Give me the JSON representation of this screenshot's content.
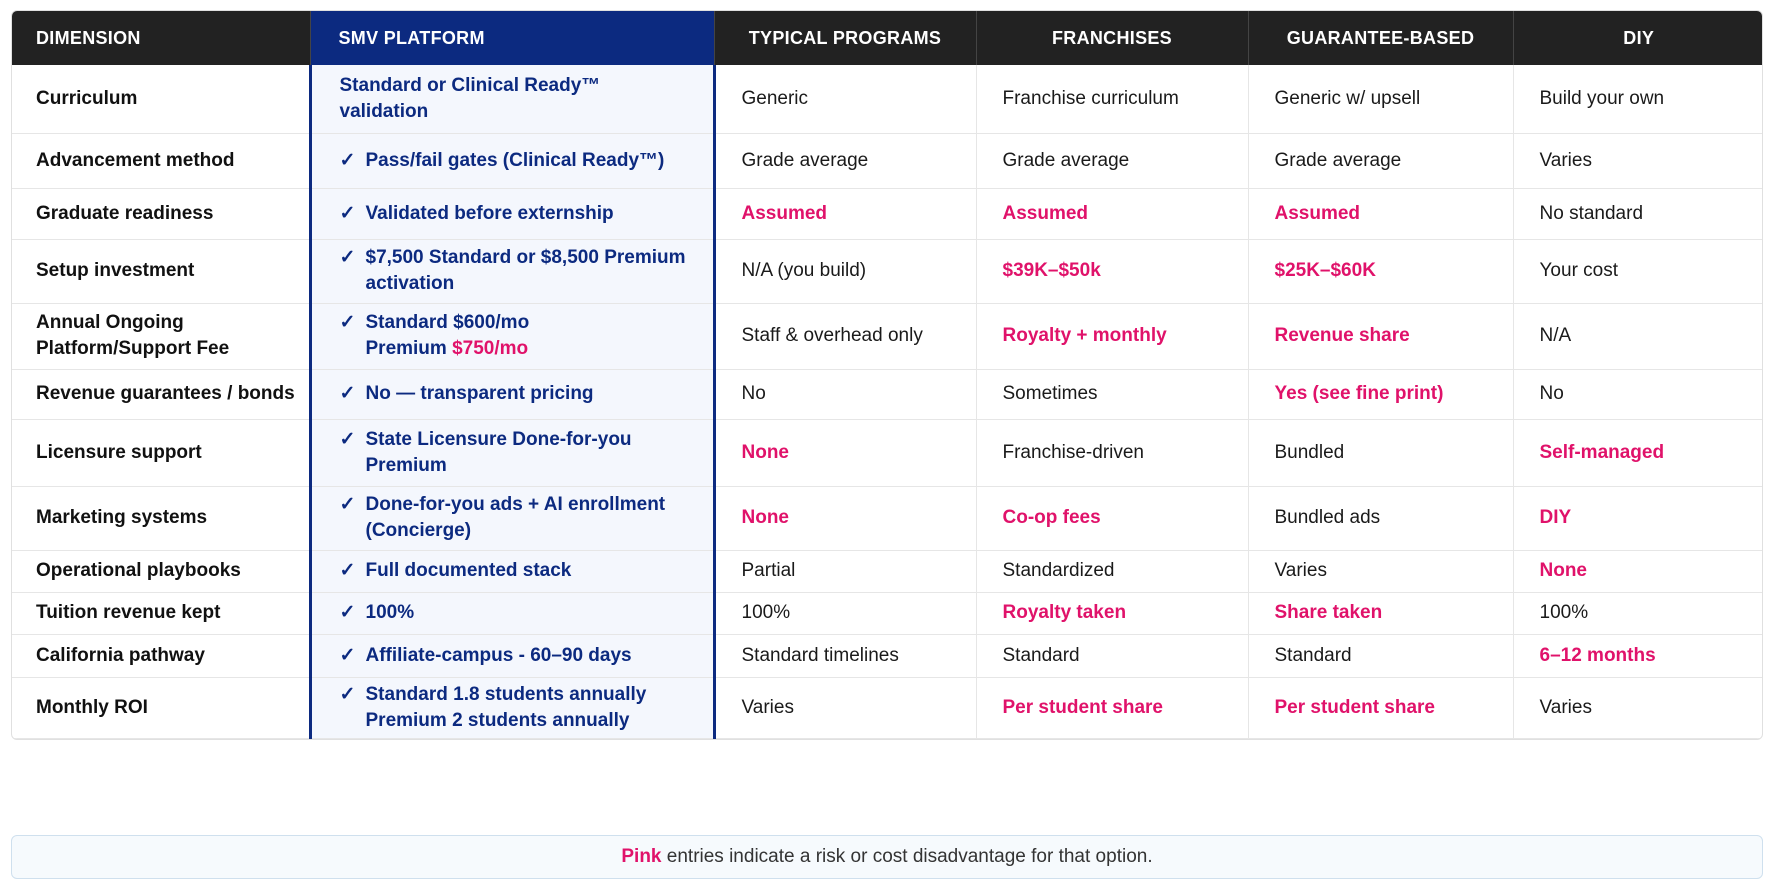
{
  "headers": [
    "DIMENSION",
    "SMV PLATFORM",
    "TYPICAL PROGRAMS",
    "FRANCHISES",
    "GUARANTEE-BASED",
    "DIY"
  ],
  "accent_colors": {
    "smv": "#0c2a80",
    "pink": "#e0126a",
    "header_bg": "#222222"
  },
  "rows": [
    {
      "dimension": "Curriculum",
      "smv": "Standard or Clinical Ready™ validation",
      "smv_check": false,
      "cells": [
        {
          "text": "Generic",
          "pink": false
        },
        {
          "text": "Franchise curriculum",
          "pink": false
        },
        {
          "text": "Generic w/ upsell",
          "pink": false
        },
        {
          "text": "Build your own",
          "pink": false
        }
      ]
    },
    {
      "dimension": "Advancement method",
      "smv": "Pass/fail gates (Clinical Ready™)",
      "smv_check": true,
      "cells": [
        {
          "text": "Grade average",
          "pink": false
        },
        {
          "text": "Grade average",
          "pink": false
        },
        {
          "text": "Grade average",
          "pink": false
        },
        {
          "text": "Varies",
          "pink": false
        }
      ]
    },
    {
      "dimension": "Graduate readiness",
      "smv": "Validated before externship",
      "smv_check": true,
      "cells": [
        {
          "text": "Assumed",
          "pink": true
        },
        {
          "text": "Assumed",
          "pink": true
        },
        {
          "text": "Assumed",
          "pink": true
        },
        {
          "text": "No standard",
          "pink": false
        }
      ]
    },
    {
      "dimension": "Setup investment",
      "smv": "$7,500 Standard or $8,500 Premium activation",
      "smv_check": true,
      "cells": [
        {
          "text": "N/A (you build)",
          "pink": false
        },
        {
          "text": "$39K–$50k",
          "pink": true
        },
        {
          "text": "$25K–$60K",
          "pink": true
        },
        {
          "text": "Your cost",
          "pink": false
        }
      ]
    },
    {
      "dimension": "Annual Ongoing Platform/Support Fee",
      "smv_line1": "Standard $600/mo",
      "smv_line2_prefix": "Premium ",
      "smv_line2_pink": "$750/mo",
      "smv_check": true,
      "cells": [
        {
          "text": "Staff & overhead only",
          "pink": false
        },
        {
          "text": "Royalty + monthly",
          "pink": true
        },
        {
          "text": "Revenue share",
          "pink": true
        },
        {
          "text": "N/A",
          "pink": false
        }
      ]
    },
    {
      "dimension": "Revenue guarantees / bonds",
      "smv": "No — transparent pricing",
      "smv_check": true,
      "cells": [
        {
          "text": "No",
          "pink": false
        },
        {
          "text": "Sometimes",
          "pink": false
        },
        {
          "text": "Yes (see fine print)",
          "pink": true
        },
        {
          "text": "No",
          "pink": false
        }
      ]
    },
    {
      "dimension": "Licensure support",
      "smv": "State Licensure Done-for-you Premium",
      "smv_check": true,
      "cells": [
        {
          "text": "None",
          "pink": true
        },
        {
          "text": "Franchise-driven",
          "pink": false
        },
        {
          "text": "Bundled",
          "pink": false
        },
        {
          "text": "Self-managed",
          "pink": true
        }
      ]
    },
    {
      "dimension": "Marketing systems",
      "smv": "Done-for-you ads + AI enrollment (Concierge)",
      "smv_check": true,
      "cells": [
        {
          "text": "None",
          "pink": true
        },
        {
          "text": "Co-op fees",
          "pink": true
        },
        {
          "text": "Bundled ads",
          "pink": false
        },
        {
          "text": "DIY",
          "pink": true
        }
      ]
    },
    {
      "dimension": "Operational playbooks",
      "smv": "Full documented stack",
      "smv_check": true,
      "cells": [
        {
          "text": "Partial",
          "pink": false
        },
        {
          "text": "Standardized",
          "pink": false
        },
        {
          "text": "Varies",
          "pink": false
        },
        {
          "text": "None",
          "pink": true
        }
      ]
    },
    {
      "dimension": "Tuition revenue kept",
      "smv": "100%",
      "smv_check": true,
      "cells": [
        {
          "text": "100%",
          "pink": false
        },
        {
          "text": "Royalty taken",
          "pink": true
        },
        {
          "text": "Share taken",
          "pink": true
        },
        {
          "text": "100%",
          "pink": false
        }
      ]
    },
    {
      "dimension": "California pathway",
      "smv": "Affiliate-campus - 60–90 days",
      "smv_check": true,
      "cells": [
        {
          "text": "Standard timelines",
          "pink": false
        },
        {
          "text": "Standard",
          "pink": false
        },
        {
          "text": "Standard",
          "pink": false
        },
        {
          "text": "6–12 months",
          "pink": true
        }
      ]
    },
    {
      "dimension": "Monthly ROI",
      "smv_line1": "Standard 1.8 students annually",
      "smv_line2_prefix": "Premium 2 students annually",
      "smv_line2_pink": "",
      "smv_check": true,
      "cells": [
        {
          "text": "Varies",
          "pink": false
        },
        {
          "text": "Per student share",
          "pink": true
        },
        {
          "text": "Per student share",
          "pink": true
        },
        {
          "text": "Varies",
          "pink": false
        }
      ]
    }
  ],
  "footer": {
    "pink_word": "Pink",
    "rest": " entries indicate a risk or cost disadvantage for that option."
  },
  "check_glyph": "✓"
}
